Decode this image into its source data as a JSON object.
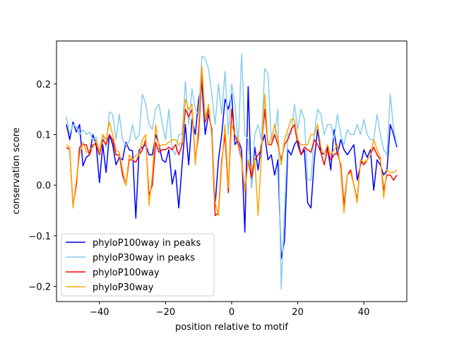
{
  "chart_data": {
    "type": "line",
    "xlabel": "position relative to motif",
    "ylabel": "conservation score",
    "xlim": [
      -53,
      53
    ],
    "ylim": [
      -0.23,
      0.285
    ],
    "xticks": [
      -40,
      -20,
      0,
      20,
      40
    ],
    "yticks": [
      -0.2,
      -0.1,
      0.0,
      0.1,
      0.2
    ],
    "xtick_labels": [
      "−40",
      "−20",
      "0",
      "20",
      "40"
    ],
    "ytick_labels": [
      "−0.2",
      "−0.1",
      "0.0",
      "0.1",
      "0.2"
    ],
    "grid": false,
    "legend_position": "lower-left",
    "x": [
      -50,
      -49,
      -48,
      -47,
      -46,
      -45,
      -44,
      -43,
      -42,
      -41,
      -40,
      -39,
      -38,
      -37,
      -36,
      -35,
      -34,
      -33,
      -32,
      -31,
      -30,
      -29,
      -28,
      -27,
      -26,
      -25,
      -24,
      -23,
      -22,
      -21,
      -20,
      -19,
      -18,
      -17,
      -16,
      -15,
      -14,
      -13,
      -12,
      -11,
      -10,
      -9,
      -8,
      -7,
      -6,
      -5,
      -4,
      -3,
      -2,
      -1,
      0,
      1,
      2,
      3,
      4,
      5,
      6,
      7,
      8,
      9,
      10,
      11,
      12,
      13,
      14,
      15,
      16,
      17,
      18,
      19,
      20,
      21,
      22,
      23,
      24,
      25,
      26,
      27,
      28,
      29,
      30,
      31,
      32,
      33,
      34,
      35,
      36,
      37,
      38,
      39,
      40,
      41,
      42,
      43,
      44,
      45,
      46,
      47,
      48,
      49,
      50
    ],
    "series": [
      {
        "name": "phyloP100way in peaks",
        "color": "#0000ff",
        "values": [
          0.12,
          0.09,
          0.125,
          0.105,
          0.12,
          0.038,
          0.055,
          0.06,
          0.1,
          0.08,
          0.005,
          0.08,
          0.025,
          0.1,
          0.08,
          0.04,
          0.055,
          0.05,
          0.085,
          0.07,
          0.068,
          -0.065,
          0.07,
          0.075,
          0.08,
          0.06,
          0.06,
          0.1,
          0.08,
          0.05,
          0.045,
          0.07,
          0.002,
          0.03,
          -0.045,
          0.04,
          0.12,
          0.04,
          0.13,
          0.1,
          0.17,
          0.2,
          0.1,
          0.14,
          0.11,
          -0.04,
          0.05,
          0.1,
          0.17,
          0.15,
          0.18,
          0.08,
          0.09,
          0.07,
          -0.093,
          0.195,
          -0.005,
          0.075,
          0.03,
          0.08,
          0.1,
          0.05,
          0.06,
          0.02,
          0.05,
          -0.145,
          -0.11,
          0.07,
          0.06,
          0.08,
          0.09,
          0.06,
          0.07,
          -0.035,
          -0.045,
          0.05,
          0.11,
          0.065,
          0.06,
          0.075,
          0.03,
          0.11,
          0.06,
          0.09,
          0.07,
          0.06,
          0.07,
          0.08,
          0.01,
          0.04,
          0.07,
          0.055,
          0.07,
          -0.01,
          0.05,
          0.04,
          0.02,
          0.03,
          0.12,
          0.1,
          0.075
        ]
      },
      {
        "name": "phyloP30way in peaks",
        "color": "#87ceeb",
        "values": [
          0.135,
          0.1,
          0.12,
          0.115,
          0.1,
          0.11,
          0.1,
          0.105,
          0.09,
          0.095,
          0.06,
          0.1,
          0.075,
          0.145,
          0.14,
          0.09,
          0.14,
          0.09,
          0.08,
          0.085,
          0.12,
          0.09,
          0.1,
          0.18,
          0.16,
          0.12,
          0.11,
          0.15,
          0.16,
          0.12,
          0.09,
          0.15,
          0.07,
          0.06,
          0.1,
          0.1,
          0.205,
          0.12,
          0.19,
          0.15,
          0.14,
          0.255,
          0.25,
          0.23,
          0.18,
          0.12,
          0.2,
          0.14,
          0.225,
          0.1,
          0.2,
          0.16,
          0.08,
          0.26,
          0.1,
          0.09,
          -0.005,
          0.1,
          0.12,
          0.09,
          0.23,
          0.22,
          0.09,
          0.1,
          0.15,
          -0.205,
          -0.05,
          0.1,
          0.1,
          0.16,
          0.11,
          0.15,
          0.13,
          0.01,
          0.01,
          0.1,
          0.15,
          0.14,
          0.1,
          0.12,
          0.12,
          0.09,
          0.14,
          0.1,
          0.08,
          0.11,
          0.1,
          0.1,
          0.12,
          0.1,
          0.13,
          0.1,
          0.09,
          0.09,
          0.14,
          0.1,
          0.07,
          0.06,
          0.18,
          0.11,
          0.08
        ]
      },
      {
        "name": "phyloP100way",
        "color": "#ff0000",
        "values": [
          0.075,
          0.07,
          -0.04,
          0.0,
          0.075,
          0.08,
          0.08,
          0.06,
          0.08,
          0.08,
          0.06,
          0.09,
          0.08,
          0.1,
          0.09,
          0.06,
          0.06,
          0.02,
          0.0,
          0.05,
          0.05,
          0.045,
          0.06,
          0.07,
          0.09,
          -0.02,
          0.0,
          0.085,
          0.065,
          0.07,
          0.07,
          0.075,
          0.07,
          0.08,
          0.06,
          0.08,
          0.15,
          0.135,
          0.15,
          0.05,
          0.1,
          0.22,
          0.125,
          0.15,
          0.1,
          -0.06,
          -0.055,
          0.05,
          0.1,
          -0.015,
          0.15,
          0.1,
          0.08,
          0.05,
          -0.01,
          0.05,
          0.015,
          0.05,
          0.06,
          0.07,
          0.15,
          0.08,
          0.08,
          0.1,
          0.08,
          0.05,
          0.08,
          0.09,
          0.11,
          0.12,
          0.08,
          0.06,
          0.075,
          0.07,
          0.065,
          0.09,
          0.08,
          0.065,
          0.04,
          0.07,
          0.05,
          0.06,
          0.065,
          0.04,
          -0.04,
          0.02,
          0.03,
          0.0,
          -0.03,
          0.05,
          0.04,
          0.05,
          0.06,
          0.075,
          0.06,
          0.05,
          -0.01,
          0.02,
          0.02,
          0.01,
          0.02
        ]
      },
      {
        "name": "phyloP30way",
        "color": "#ffa500",
        "values": [
          0.08,
          0.075,
          -0.045,
          0.01,
          0.06,
          0.085,
          0.065,
          0.07,
          0.075,
          0.09,
          0.065,
          0.1,
          0.09,
          0.125,
          0.1,
          0.07,
          0.065,
          0.03,
          0.0,
          0.06,
          0.05,
          0.06,
          0.06,
          0.09,
          0.1,
          -0.04,
          0.02,
          0.12,
          0.075,
          0.08,
          0.08,
          0.085,
          0.09,
          0.09,
          0.08,
          0.085,
          0.17,
          0.15,
          0.16,
          0.04,
          0.12,
          0.235,
          0.13,
          0.16,
          0.1,
          -0.035,
          -0.06,
          0.04,
          0.12,
          -0.005,
          0.12,
          0.1,
          0.09,
          0.05,
          -0.015,
          0.05,
          0.03,
          0.05,
          -0.06,
          0.06,
          0.18,
          0.08,
          0.09,
          0.12,
          0.09,
          0.04,
          0.09,
          0.11,
          0.13,
          0.13,
          0.09,
          0.08,
          0.08,
          0.08,
          0.1,
          0.1,
          0.12,
          0.075,
          0.06,
          0.08,
          0.06,
          0.07,
          0.08,
          0.03,
          -0.055,
          0.02,
          0.025,
          0.0,
          -0.035,
          0.05,
          0.045,
          0.05,
          0.06,
          0.09,
          0.07,
          0.055,
          -0.025,
          0.03,
          0.025,
          0.025,
          0.03
        ]
      }
    ]
  }
}
